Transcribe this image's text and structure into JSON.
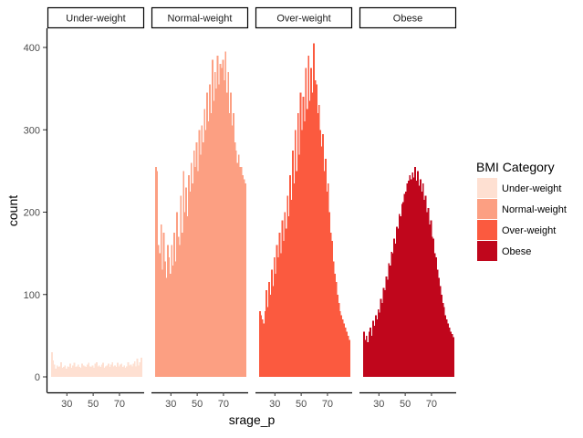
{
  "chart_data": {
    "type": "bar",
    "kind": "faceted-histogram",
    "xlabel": "srage_p",
    "ylabel": "count",
    "ylim": [
      0,
      420
    ],
    "y_ticks": [
      0,
      100,
      200,
      300,
      400
    ],
    "x_range": [
      18,
      86
    ],
    "x_ticks": [
      30,
      50,
      70
    ],
    "grid": false,
    "legend": {
      "title": "BMI Category",
      "position": "right",
      "entries": [
        "Under-weight",
        "Normal-weight",
        "Over-weight",
        "Obese"
      ]
    },
    "facets": [
      {
        "name": "Under-weight",
        "color": "#FEE0D2",
        "x_start": 18,
        "values": [
          30,
          20,
          15,
          10,
          14,
          12,
          13,
          18,
          11,
          12,
          14,
          10,
          13,
          12,
          16,
          11,
          14,
          17,
          12,
          13,
          15,
          12,
          11,
          16,
          14,
          13,
          12,
          15,
          17,
          13,
          12,
          14,
          11,
          16,
          18,
          13,
          14,
          12,
          15,
          17,
          11,
          13,
          14,
          16,
          12,
          15,
          18,
          13,
          14,
          12,
          17,
          13,
          15,
          16,
          12,
          14,
          11,
          13,
          18,
          14,
          15,
          13,
          16,
          19,
          13,
          22,
          14,
          18,
          23
        ]
      },
      {
        "name": "Normal-weight",
        "color": "#FC9F82",
        "x_start": 18,
        "values": [
          255,
          250,
          160,
          150,
          185,
          130,
          175,
          140,
          120,
          160,
          145,
          125,
          160,
          135,
          175,
          140,
          200,
          170,
          160,
          220,
          175,
          250,
          200,
          230,
          195,
          245,
          225,
          260,
          235,
          275,
          255,
          285,
          250,
          300,
          270,
          305,
          285,
          325,
          300,
          345,
          310,
          355,
          320,
          385,
          335,
          370,
          350,
          390,
          355,
          380,
          375,
          385,
          360,
          395,
          345,
          370,
          320,
          345,
          305,
          320,
          285,
          275,
          260,
          270,
          255,
          255,
          245,
          240,
          235
        ]
      },
      {
        "name": "Over-weight",
        "color": "#FB5A3F",
        "x_start": 18,
        "values": [
          80,
          75,
          70,
          65,
          80,
          105,
          85,
          115,
          100,
          130,
          110,
          145,
          125,
          160,
          145,
          175,
          150,
          190,
          165,
          200,
          180,
          220,
          195,
          245,
          215,
          275,
          235,
          300,
          250,
          320,
          270,
          345,
          300,
          340,
          310,
          375,
          325,
          390,
          335,
          375,
          345,
          405,
          360,
          355,
          320,
          330,
          300,
          280,
          295,
          250,
          265,
          225,
          235,
          200,
          175,
          165,
          140,
          125,
          115,
          100,
          90,
          80,
          75,
          70,
          65,
          60,
          55,
          50,
          45
        ]
      },
      {
        "name": "Obese",
        "color": "#C0061C",
        "x_start": 18,
        "values": [
          55,
          45,
          50,
          42,
          55,
          60,
          50,
          68,
          62,
          75,
          70,
          82,
          78,
          95,
          90,
          108,
          105,
          122,
          118,
          138,
          135,
          152,
          150,
          168,
          162,
          182,
          180,
          198,
          195,
          210,
          212,
          222,
          225,
          235,
          238,
          245,
          240,
          248,
          242,
          255,
          238,
          250,
          232,
          240,
          225,
          235,
          215,
          220,
          200,
          205,
          185,
          190,
          170,
          168,
          150,
          145,
          130,
          120,
          110,
          100,
          90,
          85,
          75,
          70,
          65,
          60,
          55,
          52,
          48
        ]
      }
    ]
  }
}
